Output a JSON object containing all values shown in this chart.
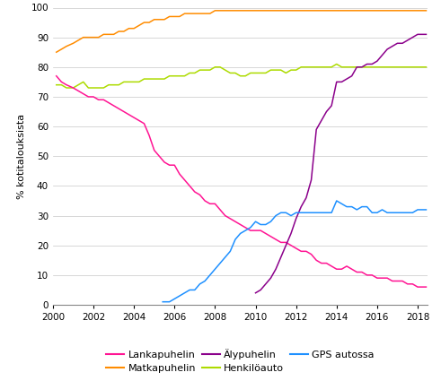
{
  "ylabel": "% kotitalouksista",
  "xlim": [
    2000,
    2018.5
  ],
  "ylim": [
    0,
    100
  ],
  "yticks": [
    0,
    10,
    20,
    30,
    40,
    50,
    60,
    70,
    80,
    90,
    100
  ],
  "xticks": [
    2000,
    2002,
    2004,
    2006,
    2008,
    2010,
    2012,
    2014,
    2016,
    2018
  ],
  "series": {
    "Lankapuhelin": {
      "color": "#FF1493",
      "x": [
        2000.17,
        2000.42,
        2000.67,
        2001.0,
        2001.25,
        2001.5,
        2001.75,
        2002.0,
        2002.25,
        2002.5,
        2002.75,
        2003.0,
        2003.25,
        2003.5,
        2003.75,
        2004.0,
        2004.25,
        2004.5,
        2004.75,
        2005.0,
        2005.25,
        2005.5,
        2005.75,
        2006.0,
        2006.25,
        2006.5,
        2006.75,
        2007.0,
        2007.25,
        2007.5,
        2007.75,
        2008.0,
        2008.25,
        2008.5,
        2008.75,
        2009.0,
        2009.25,
        2009.5,
        2009.75,
        2010.0,
        2010.25,
        2010.5,
        2010.75,
        2011.0,
        2011.25,
        2011.5,
        2011.75,
        2012.0,
        2012.25,
        2012.5,
        2012.75,
        2013.0,
        2013.25,
        2013.5,
        2013.75,
        2014.0,
        2014.25,
        2014.5,
        2014.75,
        2015.0,
        2015.25,
        2015.5,
        2015.75,
        2016.0,
        2016.25,
        2016.5,
        2016.75,
        2017.0,
        2017.25,
        2017.5,
        2017.75,
        2018.0,
        2018.42
      ],
      "y": [
        77,
        75,
        74,
        73,
        72,
        71,
        70,
        70,
        69,
        69,
        68,
        67,
        66,
        65,
        64,
        63,
        62,
        61,
        57,
        52,
        50,
        48,
        47,
        47,
        44,
        42,
        40,
        38,
        37,
        35,
        34,
        34,
        32,
        30,
        29,
        28,
        27,
        26,
        25,
        25,
        25,
        24,
        23,
        22,
        21,
        21,
        20,
        19,
        18,
        18,
        17,
        15,
        14,
        14,
        13,
        12,
        12,
        13,
        12,
        11,
        11,
        10,
        10,
        9,
        9,
        9,
        8,
        8,
        8,
        7,
        7,
        6,
        6
      ]
    },
    "Matkapuhelin": {
      "color": "#FF8C00",
      "x": [
        2000.17,
        2000.42,
        2000.67,
        2001.0,
        2001.25,
        2001.5,
        2001.75,
        2002.0,
        2002.25,
        2002.5,
        2002.75,
        2003.0,
        2003.25,
        2003.5,
        2003.75,
        2004.0,
        2004.25,
        2004.5,
        2004.75,
        2005.0,
        2005.25,
        2005.5,
        2005.75,
        2006.0,
        2006.25,
        2006.5,
        2006.75,
        2007.0,
        2007.25,
        2007.5,
        2007.75,
        2008.0,
        2008.25,
        2008.5,
        2008.75,
        2009.0,
        2009.25,
        2009.5,
        2009.75,
        2010.0,
        2010.25,
        2010.5,
        2010.75,
        2011.0,
        2011.25,
        2011.5,
        2011.75,
        2012.0,
        2012.25,
        2012.5,
        2013.0,
        2013.5,
        2014.0,
        2014.5,
        2015.0,
        2015.5,
        2016.0,
        2016.5,
        2017.0,
        2017.5,
        2018.0,
        2018.42
      ],
      "y": [
        85,
        86,
        87,
        88,
        89,
        90,
        90,
        90,
        90,
        91,
        91,
        91,
        92,
        92,
        93,
        93,
        94,
        95,
        95,
        96,
        96,
        96,
        97,
        97,
        97,
        98,
        98,
        98,
        98,
        98,
        98,
        99,
        99,
        99,
        99,
        99,
        99,
        99,
        99,
        99,
        99,
        99,
        99,
        99,
        99,
        99,
        99,
        99,
        99,
        99,
        99,
        99,
        99,
        99,
        99,
        99,
        99,
        99,
        99,
        99,
        99,
        99
      ]
    },
    "Alypuhelin": {
      "color": "#8B008B",
      "x": [
        2010.0,
        2010.25,
        2010.5,
        2010.75,
        2011.0,
        2011.25,
        2011.5,
        2011.75,
        2012.0,
        2012.25,
        2012.5,
        2012.75,
        2013.0,
        2013.25,
        2013.5,
        2013.75,
        2014.0,
        2014.25,
        2014.5,
        2014.75,
        2015.0,
        2015.25,
        2015.5,
        2015.75,
        2016.0,
        2016.25,
        2016.5,
        2016.75,
        2017.0,
        2017.25,
        2017.5,
        2017.75,
        2018.0,
        2018.42
      ],
      "y": [
        4,
        5,
        7,
        9,
        12,
        16,
        20,
        24,
        29,
        33,
        36,
        42,
        59,
        62,
        65,
        67,
        75,
        75,
        76,
        77,
        80,
        80,
        81,
        81,
        82,
        84,
        86,
        87,
        88,
        88,
        89,
        90,
        91,
        91
      ]
    },
    "Henkiloauto": {
      "color": "#ADDB00",
      "x": [
        2000.17,
        2000.42,
        2000.67,
        2001.0,
        2001.25,
        2001.5,
        2001.75,
        2002.0,
        2002.25,
        2002.5,
        2002.75,
        2003.0,
        2003.25,
        2003.5,
        2003.75,
        2004.0,
        2004.25,
        2004.5,
        2004.75,
        2005.0,
        2005.25,
        2005.5,
        2005.75,
        2006.0,
        2006.25,
        2006.5,
        2006.75,
        2007.0,
        2007.25,
        2007.5,
        2007.75,
        2008.0,
        2008.25,
        2008.5,
        2008.75,
        2009.0,
        2009.25,
        2009.5,
        2009.75,
        2010.0,
        2010.25,
        2010.5,
        2010.75,
        2011.0,
        2011.25,
        2011.5,
        2011.75,
        2012.0,
        2012.25,
        2012.5,
        2012.75,
        2013.0,
        2013.25,
        2013.5,
        2013.75,
        2014.0,
        2014.25,
        2014.5,
        2014.75,
        2015.0,
        2015.25,
        2015.5,
        2015.75,
        2016.0,
        2016.25,
        2016.5,
        2016.75,
        2017.0,
        2017.25,
        2017.5,
        2017.75,
        2018.0,
        2018.42
      ],
      "y": [
        74,
        74,
        73,
        73,
        74,
        75,
        73,
        73,
        73,
        73,
        74,
        74,
        74,
        75,
        75,
        75,
        75,
        76,
        76,
        76,
        76,
        76,
        77,
        77,
        77,
        77,
        78,
        78,
        79,
        79,
        79,
        80,
        80,
        79,
        78,
        78,
        77,
        77,
        78,
        78,
        78,
        78,
        79,
        79,
        79,
        78,
        79,
        79,
        80,
        80,
        80,
        80,
        80,
        80,
        80,
        81,
        80,
        80,
        80,
        80,
        80,
        80,
        80,
        80,
        80,
        80,
        80,
        80,
        80,
        80,
        80,
        80,
        80
      ]
    },
    "GPS autossa": {
      "color": "#1E90FF",
      "x": [
        2005.42,
        2005.75,
        2006.0,
        2006.25,
        2006.5,
        2006.75,
        2007.0,
        2007.25,
        2007.5,
        2007.75,
        2008.0,
        2008.25,
        2008.5,
        2008.75,
        2009.0,
        2009.25,
        2009.5,
        2009.75,
        2010.0,
        2010.25,
        2010.5,
        2010.75,
        2011.0,
        2011.25,
        2011.5,
        2011.75,
        2012.0,
        2012.25,
        2012.5,
        2012.75,
        2013.0,
        2013.25,
        2013.5,
        2013.75,
        2014.0,
        2014.25,
        2014.5,
        2014.75,
        2015.0,
        2015.25,
        2015.5,
        2015.75,
        2016.0,
        2016.25,
        2016.5,
        2016.75,
        2017.0,
        2017.25,
        2017.5,
        2017.75,
        2018.0,
        2018.42
      ],
      "y": [
        1,
        1,
        2,
        3,
        4,
        5,
        5,
        7,
        8,
        10,
        12,
        14,
        16,
        18,
        22,
        24,
        25,
        26,
        28,
        27,
        27,
        28,
        30,
        31,
        31,
        30,
        31,
        31,
        31,
        31,
        31,
        31,
        31,
        31,
        35,
        34,
        33,
        33,
        32,
        33,
        33,
        31,
        31,
        32,
        31,
        31,
        31,
        31,
        31,
        31,
        32,
        32
      ]
    }
  },
  "legend": [
    {
      "label": "Lankapuhelin",
      "color": "#FF1493"
    },
    {
      "label": "Matkapuhelin",
      "color": "#FF8C00"
    },
    {
      "label": "Älypuhelin",
      "color": "#8B008B"
    },
    {
      "label": "Henkilöauto",
      "color": "#ADDB00"
    },
    {
      "label": "GPS autossa",
      "color": "#1E90FF"
    }
  ],
  "figsize": [
    4.91,
    4.25
  ],
  "dpi": 100
}
